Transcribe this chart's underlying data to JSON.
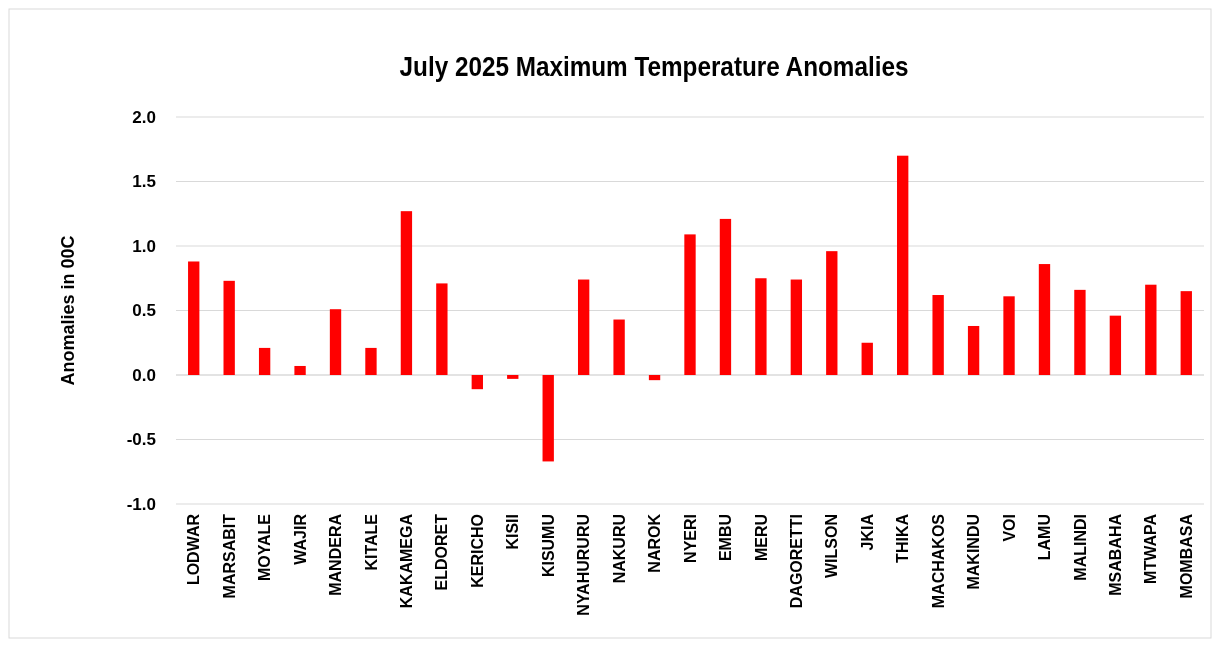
{
  "chart_data": {
    "type": "bar",
    "title": "July 2025 Maximum Temperature Anomalies",
    "ylabel": "Anomalies in 00C",
    "categories": [
      "LODWAR",
      "MARSABIT",
      "MOYALE",
      "WAJIR",
      "MANDERA",
      "KITALE",
      "KAKAMEGA",
      "ELDORET",
      "KERICHO",
      "KISII",
      "KISUMU",
      "NYAHURURU",
      "NAKURU",
      "NAROK",
      "NYERI",
      "EMBU",
      "MERU",
      "DAGORETTI",
      "WILSON",
      "JKIA",
      "THIKA",
      "MACHAKOS",
      "MAKINDU",
      "VOI",
      "LAMU",
      "MALINDI",
      "MSABAHA",
      "MTWAPA",
      "MOMBASA"
    ],
    "values": [
      0.88,
      0.73,
      0.21,
      0.07,
      0.51,
      0.21,
      1.27,
      0.71,
      -0.11,
      -0.03,
      -0.67,
      0.74,
      0.43,
      -0.04,
      1.09,
      1.21,
      0.75,
      0.74,
      0.96,
      0.25,
      1.7,
      0.62,
      0.38,
      0.61,
      0.86,
      0.66,
      0.46,
      0.7,
      0.65
    ],
    "color": "#ff0000",
    "ylim": [
      -1,
      2
    ],
    "yticks": [
      {
        "value": -1,
        "label": "-1.0"
      },
      {
        "value": -0.5,
        "label": "-0.5"
      },
      {
        "value": 0,
        "label": "0.0"
      },
      {
        "value": 0.5,
        "label": "0.5"
      },
      {
        "value": 1,
        "label": "1.0"
      },
      {
        "value": 1.5,
        "label": "1.5"
      },
      {
        "value": 2,
        "label": "2.0"
      }
    ],
    "grid": "y"
  }
}
